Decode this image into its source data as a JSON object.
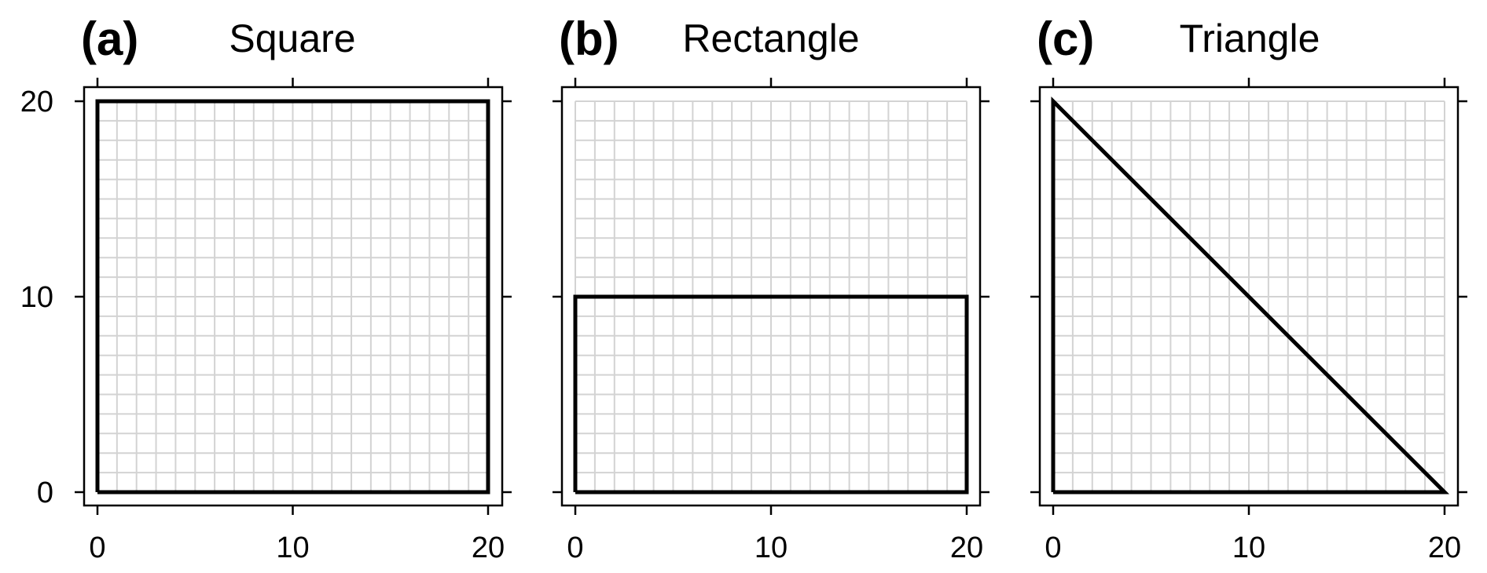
{
  "chart_data": [
    {
      "type": "line",
      "panel_label": "(a)",
      "title": "Square",
      "xlim": [
        0,
        20
      ],
      "ylim": [
        0,
        20
      ],
      "xticks": [
        "0",
        "10",
        "20"
      ],
      "yticks": [
        "0",
        "10",
        "20"
      ],
      "grid": true,
      "grid_step": 1,
      "series": [
        {
          "x": [
            0,
            20,
            20,
            0,
            0
          ],
          "y": [
            0,
            0,
            20,
            20,
            0
          ]
        }
      ]
    },
    {
      "type": "line",
      "panel_label": "(b)",
      "title": "Rectangle",
      "xlim": [
        0,
        20
      ],
      "ylim": [
        0,
        20
      ],
      "xticks": [
        "0",
        "10",
        "20"
      ],
      "yticks": [],
      "grid": true,
      "grid_step": 1,
      "series": [
        {
          "x": [
            0,
            20,
            20,
            0,
            0
          ],
          "y": [
            0,
            0,
            10,
            10,
            0
          ]
        }
      ]
    },
    {
      "type": "line",
      "panel_label": "(c)",
      "title": "Triangle",
      "xlim": [
        0,
        20
      ],
      "ylim": [
        0,
        20
      ],
      "xticks": [
        "0",
        "10",
        "20"
      ],
      "yticks": [],
      "grid": true,
      "grid_step": 1,
      "series": [
        {
          "x": [
            0,
            20,
            0,
            0
          ],
          "y": [
            0,
            0,
            20,
            0
          ]
        }
      ]
    }
  ]
}
